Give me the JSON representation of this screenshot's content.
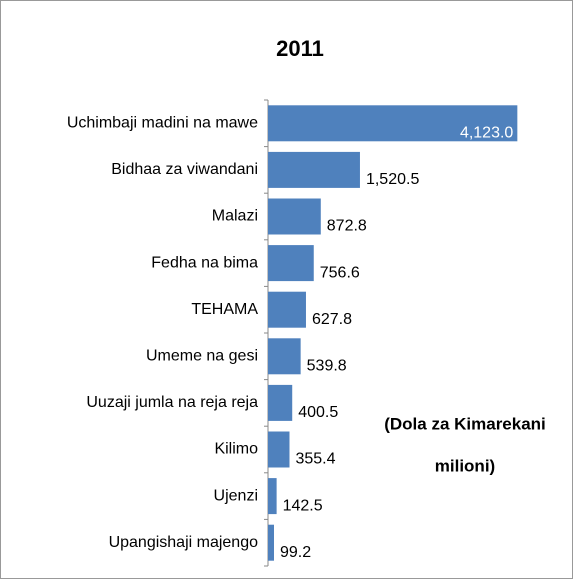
{
  "chart_data": {
    "type": "bar",
    "orientation": "horizontal",
    "title": "2011",
    "categories": [
      "Uchimbaji madini na mawe",
      "Bidhaa za viwandani",
      "Malazi",
      "Fedha na bima",
      "TEHAMA",
      "Umeme na gesi",
      "Uuzaji jumla na reja reja",
      "Kilimo",
      "Ujenzi",
      "Upangishaji majengo"
    ],
    "values": [
      4123.0,
      1520.5,
      872.8,
      756.6,
      627.8,
      539.8,
      400.5,
      355.4,
      142.5,
      99.2
    ],
    "value_labels": [
      "4,123.0",
      "1,520.5",
      "872.8",
      "756.6",
      "627.8",
      "539.8",
      "400.5",
      "355.4",
      "142.5",
      "99.2"
    ],
    "color": "#4f81bd",
    "xlim": [
      0,
      4200
    ],
    "annotation": [
      "(Dola za Kimarekani",
      "milioni)"
    ]
  }
}
